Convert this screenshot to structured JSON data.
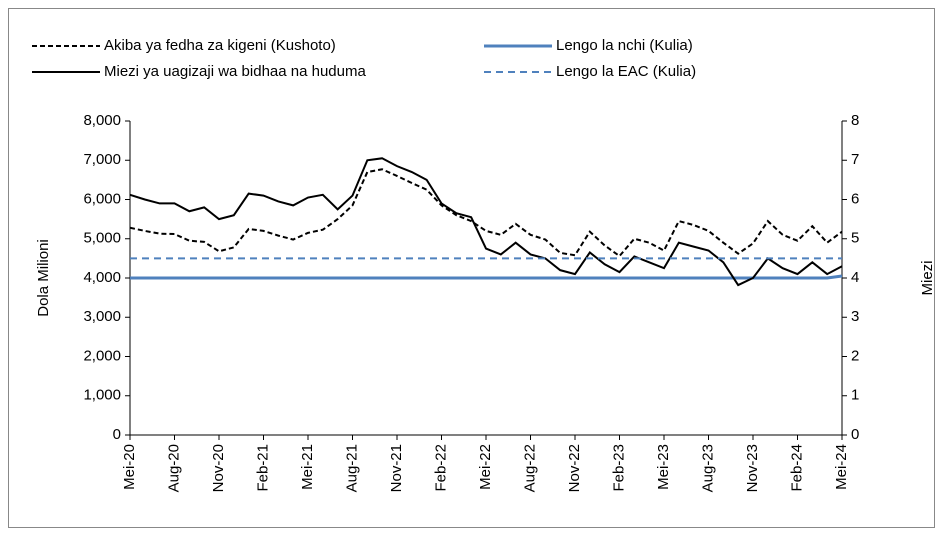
{
  "chart_data": {
    "type": "line",
    "y_label": "Dola Milioni",
    "y2_label": "Miezi",
    "categories": [
      "Mei-20",
      null,
      null,
      "Aug-20",
      null,
      null,
      "Nov-20",
      null,
      null,
      "Feb-21",
      null,
      null,
      "Mei-21",
      null,
      null,
      "Aug-21",
      null,
      null,
      "Nov-21",
      null,
      null,
      "Feb-22",
      null,
      null,
      "Mei-22",
      null,
      null,
      "Aug-22",
      null,
      null,
      "Nov-22",
      null,
      null,
      "Feb-23",
      null,
      null,
      "Mei-23",
      null,
      null,
      "Aug-23",
      null,
      null,
      "Nov-23",
      null,
      null,
      "Feb-24",
      null,
      null,
      "Mei-24"
    ],
    "ylim": [
      0,
      8000
    ],
    "yticks": [
      0,
      {
        "value": 1000,
        "label": "1,000"
      },
      {
        "value": 2000,
        "label": "2,000"
      },
      {
        "value": 3000,
        "label": "3,000"
      },
      {
        "value": 4000,
        "label": "4,000"
      },
      {
        "value": 5000,
        "label": "5,000"
      },
      {
        "value": 6000,
        "label": "6,000"
      },
      {
        "value": 7000,
        "label": "7,000"
      },
      {
        "value": 8000,
        "label": "8,000"
      }
    ],
    "y2lim": [
      0,
      8
    ],
    "y2ticks": [
      0,
      1,
      2,
      3,
      4,
      5,
      6,
      7,
      8
    ],
    "series": [
      {
        "name": "Akiba ya fedha za kigeni (Kushoto)",
        "color": "#000000",
        "dash": "dashed",
        "values": [
          5280,
          5200,
          5130,
          5120,
          4950,
          4920,
          4680,
          4780,
          5250,
          5200,
          5080,
          4980,
          5150,
          5230,
          5500,
          5850,
          6700,
          6770,
          6600,
          6420,
          6250,
          5850,
          5600,
          5450,
          5200,
          5100,
          5380,
          5100,
          4980,
          4640,
          4580,
          5180,
          4830,
          4560,
          5000,
          4900,
          4700,
          5450,
          5350,
          5200,
          4900,
          4620,
          4880,
          5450,
          5100,
          4950,
          5320,
          4900,
          5180
        ]
      },
      {
        "name": "Lengo la nchi (Kulia)",
        "color": "#4f81bd",
        "dash": "solid",
        "axis": "y2",
        "values": [
          4,
          4,
          4,
          4,
          4,
          4,
          4,
          4,
          4,
          4,
          4,
          4,
          4,
          4,
          4,
          4,
          4,
          4,
          4,
          4,
          4,
          4,
          4,
          4,
          4,
          4,
          4,
          4,
          4,
          4,
          4,
          4,
          4,
          4,
          4,
          4,
          4,
          4,
          4,
          4,
          4,
          4,
          4,
          4,
          4,
          4,
          4,
          4,
          4.05
        ]
      },
      {
        "name": "Miezi ya uagizaji wa bidhaa na huduma",
        "color": "#000000",
        "dash": "solid",
        "axis": "y2",
        "values": [
          6.12,
          6.0,
          5.9,
          5.9,
          5.7,
          5.8,
          5.5,
          5.6,
          6.15,
          6.1,
          5.95,
          5.85,
          6.05,
          6.12,
          5.75,
          6.1,
          7.0,
          7.05,
          6.85,
          6.7,
          6.5,
          5.9,
          5.65,
          5.55,
          4.75,
          4.6,
          4.9,
          4.6,
          4.5,
          4.2,
          4.1,
          4.65,
          4.35,
          4.15,
          4.55,
          4.4,
          4.25,
          4.9,
          4.8,
          4.7,
          4.4,
          3.82,
          4.0,
          4.5,
          4.25,
          4.1,
          4.4,
          4.1,
          4.3
        ]
      },
      {
        "name": "Lengo la EAC (Kulia)",
        "color": "#4f81bd",
        "dash": "dashed",
        "axis": "y2",
        "values": [
          4.5,
          4.5,
          4.5,
          4.5,
          4.5,
          4.5,
          4.5,
          4.5,
          4.5,
          4.5,
          4.5,
          4.5,
          4.5,
          4.5,
          4.5,
          4.5,
          4.5,
          4.5,
          4.5,
          4.5,
          4.5,
          4.5,
          4.5,
          4.5,
          4.5,
          4.5,
          4.5,
          4.5,
          4.5,
          4.5,
          4.5,
          4.5,
          4.5,
          4.5,
          4.5,
          4.5,
          4.5,
          4.5,
          4.5,
          4.5,
          4.5,
          4.5,
          4.5,
          4.5,
          4.5,
          4.5,
          4.5,
          4.5,
          4.5
        ]
      }
    ]
  }
}
